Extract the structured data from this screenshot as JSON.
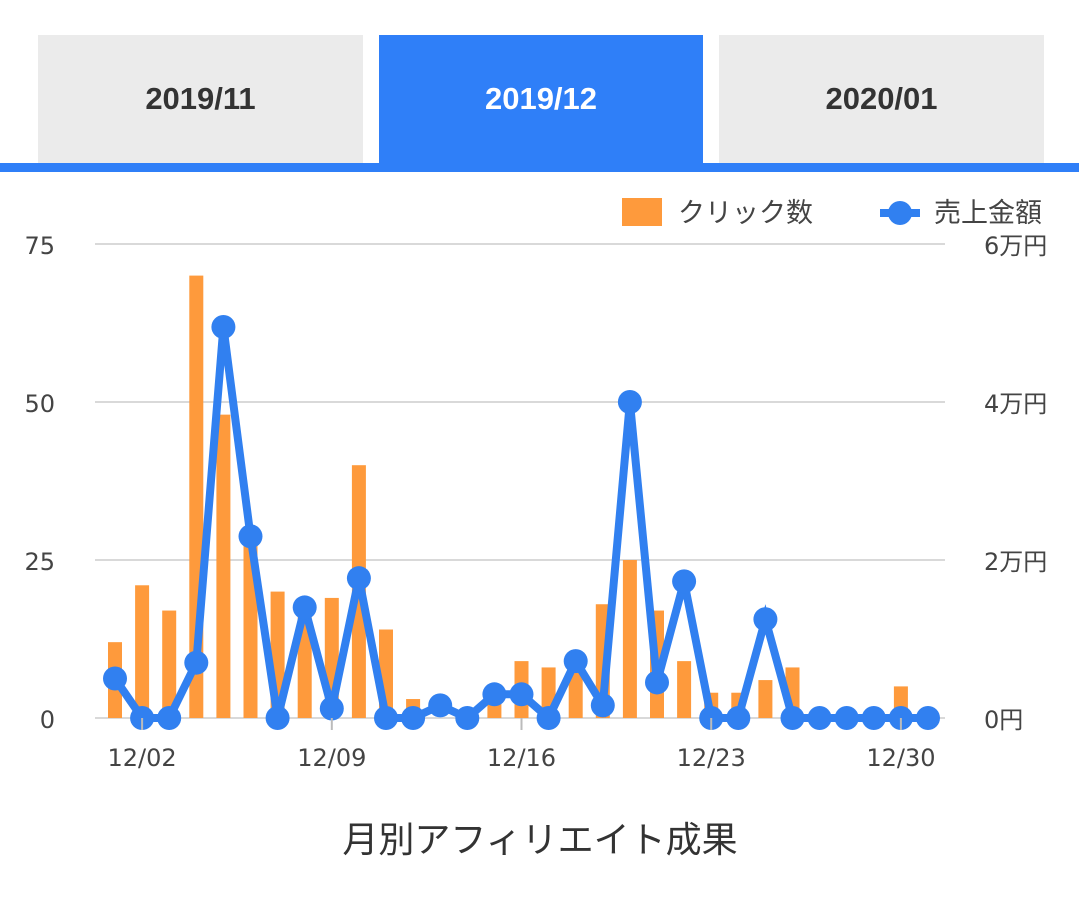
{
  "tabs": [
    {
      "label": "2019/11",
      "active": false
    },
    {
      "label": "2019/12",
      "active": true
    },
    {
      "label": "2020/01",
      "active": false
    }
  ],
  "colors": {
    "accent": "#2f7ff8",
    "bar": "#fe9a3c",
    "line": "#3180f0",
    "grid": "#d9d9d9",
    "tab_inactive": "#ebebeb"
  },
  "chart_data": {
    "type": "bar",
    "title": "月別アフィリエイト成果",
    "legend_position": "top-right",
    "grid": true,
    "x": [
      "12/01",
      "12/02",
      "12/03",
      "12/04",
      "12/05",
      "12/06",
      "12/07",
      "12/08",
      "12/09",
      "12/10",
      "12/11",
      "12/12",
      "12/13",
      "12/14",
      "12/15",
      "12/16",
      "12/17",
      "12/18",
      "12/19",
      "12/20",
      "12/21",
      "12/22",
      "12/23",
      "12/24",
      "12/25",
      "12/26",
      "12/27",
      "12/28",
      "12/29",
      "12/30",
      "12/31"
    ],
    "x_ticks": [
      "12/02",
      "12/09",
      "12/16",
      "12/23",
      "12/30"
    ],
    "y_left": {
      "ticks": [
        "0",
        "25",
        "50",
        "75"
      ],
      "range": [
        0,
        75
      ]
    },
    "y_right": {
      "ticks": [
        "0円",
        "2万円",
        "4万円",
        "6万円"
      ],
      "range": [
        0,
        60000
      ]
    },
    "series": [
      {
        "name": "クリック数",
        "type": "bar",
        "axis": "left",
        "values": [
          12,
          21,
          17,
          70,
          48,
          30,
          20,
          17,
          19,
          40,
          14,
          3,
          0,
          0,
          3,
          9,
          8,
          8,
          18,
          25,
          17,
          9,
          4,
          4,
          6,
          8,
          0,
          0,
          0,
          5,
          0
        ]
      },
      {
        "name": "売上金額",
        "type": "line",
        "axis": "right",
        "values": [
          5000,
          0,
          0,
          7000,
          49500,
          23000,
          0,
          14000,
          1200,
          17700,
          0,
          0,
          1600,
          0,
          3000,
          3000,
          0,
          7200,
          1600,
          40000,
          4500,
          17300,
          0,
          0,
          12500,
          0,
          0,
          0,
          0,
          0,
          0
        ]
      }
    ]
  }
}
